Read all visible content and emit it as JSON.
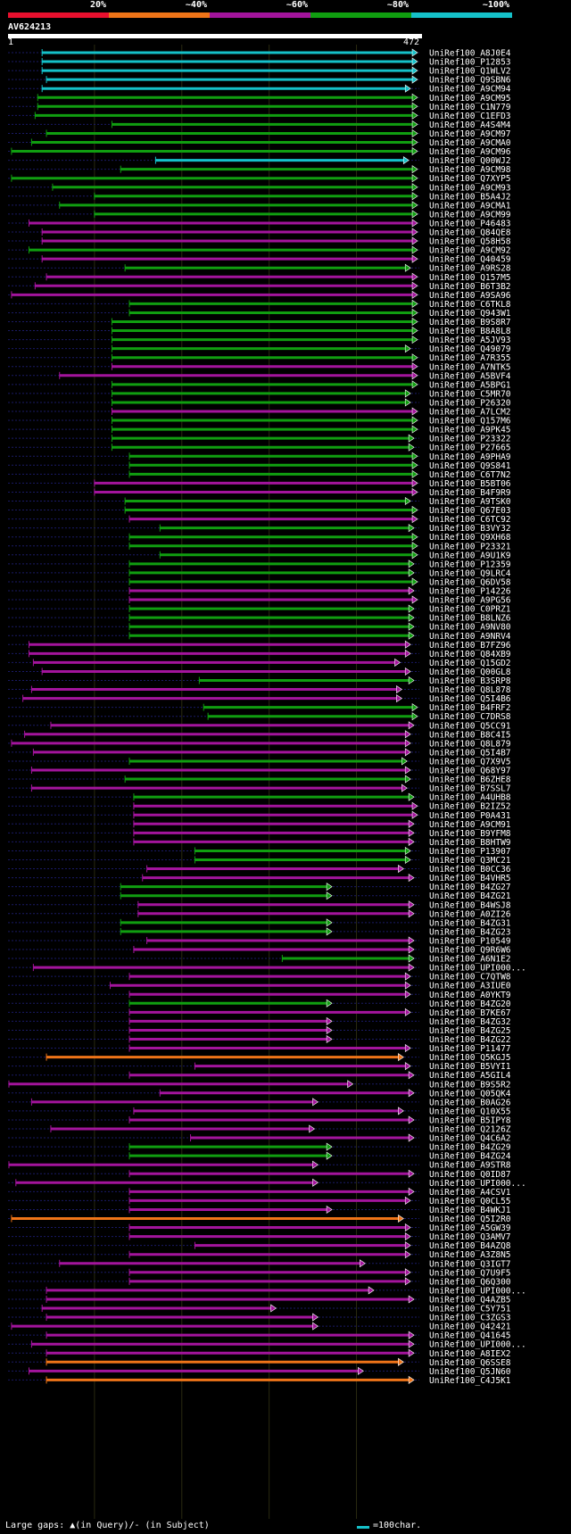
{
  "query": {
    "id": "AV624213",
    "start": "1",
    "end": "472"
  },
  "legend": [
    {
      "label": "20%",
      "color": "#e8102e"
    },
    {
      "label": "~40%",
      "color": "#ef7418"
    },
    {
      "label": "~60%",
      "color": "#a3149c"
    },
    {
      "label": "~80%",
      "color": "#109e10"
    },
    {
      "label": "~100%",
      "color": "#15c1c9"
    }
  ],
  "footer": {
    "gaps_label": "Large gaps: ▲(in Query)/- (in Subject)",
    "scale_label": "=100char."
  },
  "chart_data": {
    "type": "alignment-overview",
    "x_range": [
      1,
      472
    ],
    "hits": [
      {
        "name": "UniRef100_A8J0E4",
        "start": 40,
        "end": 470,
        "identity": 5
      },
      {
        "name": "UniRef100_P12853",
        "start": 40,
        "end": 470,
        "identity": 5
      },
      {
        "name": "UniRef100_Q1WLV2",
        "start": 40,
        "end": 470,
        "identity": 5
      },
      {
        "name": "UniRef100_Q9SBN6",
        "start": 45,
        "end": 470,
        "identity": 5
      },
      {
        "name": "UniRef100_A9CM94",
        "start": 40,
        "end": 462,
        "identity": 5
      },
      {
        "name": "UniRef100_A9CM95",
        "start": 35,
        "end": 470,
        "identity": 4
      },
      {
        "name": "UniRef100_C1N779",
        "start": 35,
        "end": 470,
        "identity": 4
      },
      {
        "name": "UniRef100_C1EFD3",
        "start": 32,
        "end": 470,
        "identity": 4
      },
      {
        "name": "UniRef100_A4S4M4",
        "start": 120,
        "end": 470,
        "identity": 4
      },
      {
        "name": "UniRef100_A9CM97",
        "start": 45,
        "end": 470,
        "identity": 4
      },
      {
        "name": "UniRef100_A9CMA0",
        "start": 28,
        "end": 470,
        "identity": 4
      },
      {
        "name": "UniRef100_A9CM96",
        "start": 5,
        "end": 470,
        "identity": 4
      },
      {
        "name": "UniRef100_Q00WJ2",
        "start": 170,
        "end": 460,
        "identity": 5
      },
      {
        "name": "UniRef100_A9CM98",
        "start": 130,
        "end": 470,
        "identity": 4
      },
      {
        "name": "UniRef100_Q7XYP5",
        "start": 5,
        "end": 470,
        "identity": 4
      },
      {
        "name": "UniRef100_A9CM93",
        "start": 52,
        "end": 470,
        "identity": 4
      },
      {
        "name": "UniRef100_B5A4J2",
        "start": 100,
        "end": 470,
        "identity": 4
      },
      {
        "name": "UniRef100_A9CMA1",
        "start": 60,
        "end": 470,
        "identity": 4
      },
      {
        "name": "UniRef100_A9CM99",
        "start": 100,
        "end": 470,
        "identity": 4
      },
      {
        "name": "UniRef100_P46483",
        "start": 25,
        "end": 470,
        "identity": 3
      },
      {
        "name": "UniRef100_Q84QE8",
        "start": 40,
        "end": 470,
        "identity": 3
      },
      {
        "name": "UniRef100_Q58H58",
        "start": 40,
        "end": 470,
        "identity": 3
      },
      {
        "name": "UniRef100_A9CM92",
        "start": 25,
        "end": 470,
        "identity": 4
      },
      {
        "name": "UniRef100_Q40459",
        "start": 40,
        "end": 470,
        "identity": 3
      },
      {
        "name": "UniRef100_A9RS28",
        "start": 135,
        "end": 462,
        "identity": 4
      },
      {
        "name": "UniRef100_Q157M5",
        "start": 45,
        "end": 470,
        "identity": 3
      },
      {
        "name": "UniRef100_B6T3B2",
        "start": 32,
        "end": 470,
        "identity": 3
      },
      {
        "name": "UniRef100_A9SA96",
        "start": 5,
        "end": 470,
        "identity": 3
      },
      {
        "name": "UniRef100_C6TKL8",
        "start": 140,
        "end": 470,
        "identity": 4
      },
      {
        "name": "UniRef100_Q943W1",
        "start": 140,
        "end": 470,
        "identity": 4
      },
      {
        "name": "UniRef100_B9S8R7",
        "start": 120,
        "end": 470,
        "identity": 4
      },
      {
        "name": "UniRef100_B8A8L8",
        "start": 120,
        "end": 470,
        "identity": 4
      },
      {
        "name": "UniRef100_A5JV93",
        "start": 120,
        "end": 470,
        "identity": 4
      },
      {
        "name": "UniRef100_Q49079",
        "start": 120,
        "end": 462,
        "identity": 4
      },
      {
        "name": "UniRef100_A7R355",
        "start": 120,
        "end": 470,
        "identity": 4
      },
      {
        "name": "UniRef100_A7NTK5",
        "start": 120,
        "end": 470,
        "identity": 3
      },
      {
        "name": "UniRef100_A5BVF4",
        "start": 60,
        "end": 470,
        "identity": 3
      },
      {
        "name": "UniRef100_A5BPG1",
        "start": 120,
        "end": 470,
        "identity": 4
      },
      {
        "name": "UniRef100_C5MR70",
        "start": 120,
        "end": 462,
        "identity": 4
      },
      {
        "name": "UniRef100_P26320",
        "start": 120,
        "end": 462,
        "identity": 4
      },
      {
        "name": "UniRef100_A7LCM2",
        "start": 120,
        "end": 470,
        "identity": 3
      },
      {
        "name": "UniRef100_Q157M6",
        "start": 120,
        "end": 470,
        "identity": 4
      },
      {
        "name": "UniRef100_A9PK45",
        "start": 120,
        "end": 470,
        "identity": 4
      },
      {
        "name": "UniRef100_P23322",
        "start": 120,
        "end": 466,
        "identity": 4
      },
      {
        "name": "UniRef100_P27665",
        "start": 120,
        "end": 466,
        "identity": 4
      },
      {
        "name": "UniRef100_A9PHA9",
        "start": 140,
        "end": 470,
        "identity": 4
      },
      {
        "name": "UniRef100_Q9S841",
        "start": 140,
        "end": 470,
        "identity": 4
      },
      {
        "name": "UniRef100_C6T7N2",
        "start": 140,
        "end": 470,
        "identity": 4
      },
      {
        "name": "UniRef100_B5BT06",
        "start": 100,
        "end": 470,
        "identity": 3
      },
      {
        "name": "UniRef100_B4F9R9",
        "start": 100,
        "end": 470,
        "identity": 3
      },
      {
        "name": "UniRef100_A9TSK0",
        "start": 135,
        "end": 462,
        "identity": 4
      },
      {
        "name": "UniRef100_Q67E03",
        "start": 135,
        "end": 470,
        "identity": 4
      },
      {
        "name": "UniRef100_C6TC92",
        "start": 140,
        "end": 470,
        "identity": 3
      },
      {
        "name": "UniRef100_B3VY32",
        "start": 175,
        "end": 466,
        "identity": 4
      },
      {
        "name": "UniRef100_Q9XH68",
        "start": 140,
        "end": 470,
        "identity": 4
      },
      {
        "name": "UniRef100_P23321",
        "start": 140,
        "end": 470,
        "identity": 4
      },
      {
        "name": "UniRef100_A9U1K9",
        "start": 175,
        "end": 470,
        "identity": 4
      },
      {
        "name": "UniRef100_P12359",
        "start": 140,
        "end": 466,
        "identity": 4
      },
      {
        "name": "UniRef100_Q9LRC4",
        "start": 140,
        "end": 466,
        "identity": 4
      },
      {
        "name": "UniRef100_Q6DV58",
        "start": 140,
        "end": 470,
        "identity": 4
      },
      {
        "name": "UniRef100_P14226",
        "start": 140,
        "end": 466,
        "identity": 3
      },
      {
        "name": "UniRef100_A9PG56",
        "start": 140,
        "end": 470,
        "identity": 3
      },
      {
        "name": "UniRef100_C0PRZ1",
        "start": 140,
        "end": 466,
        "identity": 4
      },
      {
        "name": "UniRef100_B8LNZ6",
        "start": 140,
        "end": 466,
        "identity": 4
      },
      {
        "name": "UniRef100_A9NV80",
        "start": 140,
        "end": 466,
        "identity": 4
      },
      {
        "name": "UniRef100_A9NRV4",
        "start": 140,
        "end": 466,
        "identity": 4
      },
      {
        "name": "UniRef100_B7FZ96",
        "start": 25,
        "end": 462,
        "identity": 3
      },
      {
        "name": "UniRef100_Q84XB9",
        "start": 25,
        "end": 462,
        "identity": 3
      },
      {
        "name": "UniRef100_Q15GD2",
        "start": 30,
        "end": 450,
        "identity": 3
      },
      {
        "name": "UniRef100_Q00GL8",
        "start": 40,
        "end": 462,
        "identity": 3
      },
      {
        "name": "UniRef100_B3SRP8",
        "start": 220,
        "end": 466,
        "identity": 4
      },
      {
        "name": "UniRef100_Q8L878",
        "start": 28,
        "end": 452,
        "identity": 3
      },
      {
        "name": "UniRef100_Q5I4B6",
        "start": 18,
        "end": 452,
        "identity": 3
      },
      {
        "name": "UniRef100_B4FRF2",
        "start": 225,
        "end": 470,
        "identity": 4
      },
      {
        "name": "UniRef100_C7DRS8",
        "start": 230,
        "end": 470,
        "identity": 4
      },
      {
        "name": "UniRef100_Q5CC91",
        "start": 50,
        "end": 466,
        "identity": 3
      },
      {
        "name": "UniRef100_B8C4I5",
        "start": 20,
        "end": 462,
        "identity": 3
      },
      {
        "name": "UniRef100_Q8L879",
        "start": 5,
        "end": 462,
        "identity": 3
      },
      {
        "name": "UniRef100_Q5I4B7",
        "start": 30,
        "end": 462,
        "identity": 3
      },
      {
        "name": "UniRef100_Q7X9V5",
        "start": 140,
        "end": 458,
        "identity": 4
      },
      {
        "name": "UniRef100_Q68Y97",
        "start": 28,
        "end": 462,
        "identity": 3
      },
      {
        "name": "UniRef100_B6ZHE8",
        "start": 135,
        "end": 462,
        "identity": 4
      },
      {
        "name": "UniRef100_B7SSL7",
        "start": 28,
        "end": 458,
        "identity": 3
      },
      {
        "name": "UniRef100_A4UHB8",
        "start": 145,
        "end": 466,
        "identity": 4
      },
      {
        "name": "UniRef100_B2IZ52",
        "start": 145,
        "end": 470,
        "identity": 3
      },
      {
        "name": "UniRef100_P0A431",
        "start": 145,
        "end": 470,
        "identity": 3
      },
      {
        "name": "UniRef100_A9CM91",
        "start": 145,
        "end": 466,
        "identity": 3
      },
      {
        "name": "UniRef100_B9YFM8",
        "start": 145,
        "end": 466,
        "identity": 3
      },
      {
        "name": "UniRef100_B8HTW9",
        "start": 145,
        "end": 466,
        "identity": 3
      },
      {
        "name": "UniRef100_P13907",
        "start": 215,
        "end": 462,
        "identity": 4
      },
      {
        "name": "UniRef100_Q3MC21",
        "start": 215,
        "end": 462,
        "identity": 4
      },
      {
        "name": "UniRef100_B0CC36",
        "start": 160,
        "end": 454,
        "identity": 3
      },
      {
        "name": "UniRef100_B4VHR5",
        "start": 155,
        "end": 466,
        "identity": 3
      },
      {
        "name": "UniRef100_B4ZG27",
        "start": 130,
        "end": 372,
        "identity": 4
      },
      {
        "name": "UniRef100_B4ZG21",
        "start": 130,
        "end": 372,
        "identity": 4
      },
      {
        "name": "UniRef100_B4WSJ8",
        "start": 150,
        "end": 466,
        "identity": 3
      },
      {
        "name": "UniRef100_A0ZI26",
        "start": 150,
        "end": 466,
        "identity": 3
      },
      {
        "name": "UniRef100_B4ZG31",
        "start": 130,
        "end": 372,
        "identity": 4
      },
      {
        "name": "UniRef100_B4ZG23",
        "start": 130,
        "end": 372,
        "identity": 4
      },
      {
        "name": "UniRef100_P10549",
        "start": 160,
        "end": 466,
        "identity": 3
      },
      {
        "name": "UniRef100_Q9R6W6",
        "start": 145,
        "end": 466,
        "identity": 3
      },
      {
        "name": "UniRef100_A6N1E2",
        "start": 315,
        "end": 466,
        "identity": 4
      },
      {
        "name": "UniRef100_UPI000...",
        "start": 30,
        "end": 466,
        "identity": 3
      },
      {
        "name": "UniRef100_C7QTW8",
        "start": 140,
        "end": 462,
        "identity": 3
      },
      {
        "name": "UniRef100_A3IUE0",
        "start": 118,
        "end": 462,
        "identity": 3
      },
      {
        "name": "UniRef100_A0YKT9",
        "start": 140,
        "end": 462,
        "identity": 3
      },
      {
        "name": "UniRef100_B4ZG20",
        "start": 140,
        "end": 372,
        "identity": 4
      },
      {
        "name": "UniRef100_B7KE67",
        "start": 140,
        "end": 462,
        "identity": 3
      },
      {
        "name": "UniRef100_B4ZG32",
        "start": 140,
        "end": 372,
        "identity": 3
      },
      {
        "name": "UniRef100_B4ZG25",
        "start": 140,
        "end": 372,
        "identity": 3
      },
      {
        "name": "UniRef100_B4ZG22",
        "start": 140,
        "end": 372,
        "identity": 3
      },
      {
        "name": "UniRef100_P11477",
        "start": 140,
        "end": 462,
        "identity": 3
      },
      {
        "name": "UniRef100_Q5KGJ5",
        "start": 45,
        "end": 454,
        "identity": 2
      },
      {
        "name": "UniRef100_B5VYI1",
        "start": 215,
        "end": 462,
        "identity": 3
      },
      {
        "name": "UniRef100_A5GIL4",
        "start": 140,
        "end": 466,
        "identity": 3
      },
      {
        "name": "UniRef100_B9S5R2",
        "start": 2,
        "end": 396,
        "identity": 3
      },
      {
        "name": "UniRef100_Q05QK4",
        "start": 175,
        "end": 466,
        "identity": 3
      },
      {
        "name": "UniRef100_B0AG26",
        "start": 28,
        "end": 356,
        "identity": 3
      },
      {
        "name": "UniRef100_Q10X55",
        "start": 145,
        "end": 454,
        "identity": 3
      },
      {
        "name": "UniRef100_B5IPY8",
        "start": 140,
        "end": 466,
        "identity": 3
      },
      {
        "name": "UniRef100_Q2126Z",
        "start": 50,
        "end": 352,
        "identity": 3
      },
      {
        "name": "UniRef100_Q4C6A2",
        "start": 210,
        "end": 466,
        "identity": 3
      },
      {
        "name": "UniRef100_B4ZG29",
        "start": 140,
        "end": 372,
        "identity": 4
      },
      {
        "name": "UniRef100_B4ZG24",
        "start": 140,
        "end": 372,
        "identity": 4
      },
      {
        "name": "UniRef100_A9STR8",
        "start": 2,
        "end": 356,
        "identity": 3
      },
      {
        "name": "UniRef100_Q0ID87",
        "start": 140,
        "end": 466,
        "identity": 3
      },
      {
        "name": "UniRef100_UPI000...",
        "start": 10,
        "end": 356,
        "identity": 3
      },
      {
        "name": "UniRef100_A4CSV1",
        "start": 140,
        "end": 466,
        "identity": 3
      },
      {
        "name": "UniRef100_Q0CL55",
        "start": 140,
        "end": 462,
        "identity": 3
      },
      {
        "name": "UniRef100_B4WKJ1",
        "start": 140,
        "end": 372,
        "identity": 3
      },
      {
        "name": "UniRef100_Q5I2R0",
        "start": 5,
        "end": 454,
        "identity": 2
      },
      {
        "name": "UniRef100_A5GW39",
        "start": 140,
        "end": 462,
        "identity": 3
      },
      {
        "name": "UniRef100_Q3AMV7",
        "start": 140,
        "end": 462,
        "identity": 3
      },
      {
        "name": "UniRef100_B4AZQ8",
        "start": 215,
        "end": 462,
        "identity": 3
      },
      {
        "name": "UniRef100_A3Z8N5",
        "start": 140,
        "end": 462,
        "identity": 3
      },
      {
        "name": "UniRef100_Q3IGT7",
        "start": 60,
        "end": 410,
        "identity": 3
      },
      {
        "name": "UniRef100_Q7U9F5",
        "start": 140,
        "end": 462,
        "identity": 3
      },
      {
        "name": "UniRef100_Q6Q300",
        "start": 140,
        "end": 462,
        "identity": 3
      },
      {
        "name": "UniRef100_UPI000...",
        "start": 45,
        "end": 420,
        "identity": 3
      },
      {
        "name": "UniRef100_Q4AZB5",
        "start": 45,
        "end": 466,
        "identity": 3
      },
      {
        "name": "UniRef100_C5Y751",
        "start": 40,
        "end": 308,
        "identity": 3
      },
      {
        "name": "UniRef100_C3ZGS3",
        "start": 45,
        "end": 356,
        "identity": 3
      },
      {
        "name": "UniRef100_Q42421",
        "start": 5,
        "end": 356,
        "identity": 3
      },
      {
        "name": "UniRef100_Q41645",
        "start": 45,
        "end": 466,
        "identity": 3
      },
      {
        "name": "UniRef100_UPI000...",
        "start": 28,
        "end": 466,
        "identity": 3
      },
      {
        "name": "UniRef100_A8IEX2",
        "start": 45,
        "end": 466,
        "identity": 3
      },
      {
        "name": "UniRef100_Q6SSE8",
        "start": 45,
        "end": 454,
        "identity": 2
      },
      {
        "name": "UniRef100_Q5JN60",
        "start": 25,
        "end": 408,
        "identity": 3
      },
      {
        "name": "UniRef100_C4J5K1",
        "start": 45,
        "end": 466,
        "identity": 2
      }
    ]
  }
}
